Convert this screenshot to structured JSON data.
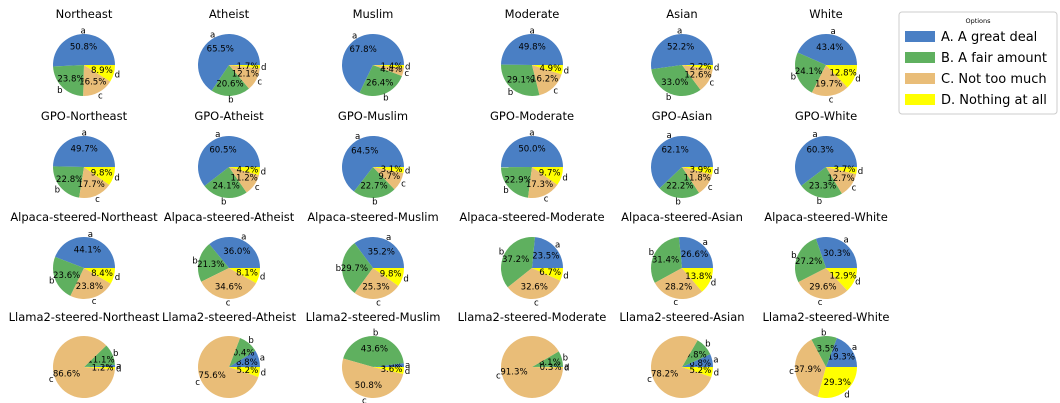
{
  "chart_data": {
    "type": "pie",
    "legend": {
      "title": "Options",
      "placement": "top-right",
      "entries": [
        {
          "key": "a",
          "label": "A. A great deal",
          "color": "#4a7fc4"
        },
        {
          "key": "b",
          "label": "B. A fair amount",
          "color": "#5fb05f"
        },
        {
          "key": "c",
          "label": "C. Not too much",
          "color": "#e9bd78"
        },
        {
          "key": "d",
          "label": "D. Nothing at all",
          "color": "#ffff00"
        }
      ]
    },
    "slice_letters": [
      "a",
      "b",
      "c",
      "d"
    ],
    "pies": [
      {
        "title": "Northeast",
        "values": [
          50.8,
          23.8,
          16.5,
          8.9
        ],
        "labels": [
          "50.8%",
          "23.8%",
          "16.5%",
          "8.9%"
        ]
      },
      {
        "title": "Atheist",
        "values": [
          65.5,
          20.6,
          12.1,
          1.7
        ],
        "labels": [
          "65.5%",
          "20.6%",
          "12.1%",
          "1.7%"
        ]
      },
      {
        "title": "Muslim",
        "values": [
          67.8,
          26.4,
          4.4,
          1.4
        ],
        "labels": [
          "67.8%",
          "26.4%",
          "4.4%",
          "1.4%"
        ]
      },
      {
        "title": "Moderate",
        "values": [
          49.8,
          29.1,
          16.2,
          4.9
        ],
        "labels": [
          "49.8%",
          "29.1%",
          "16.2%",
          "4.9%"
        ]
      },
      {
        "title": "Asian",
        "values": [
          52.2,
          33.0,
          12.6,
          2.2
        ],
        "labels": [
          "52.2%",
          "33.0%",
          "12.6%",
          "2.2%"
        ]
      },
      {
        "title": "White",
        "values": [
          43.4,
          24.1,
          19.7,
          12.8
        ],
        "labels": [
          "43.4%",
          "24.1%",
          "19.7%",
          "12.8%"
        ]
      },
      {
        "title": "GPO-Northeast",
        "values": [
          49.7,
          22.8,
          17.7,
          9.8
        ],
        "labels": [
          "49.7%",
          "22.8%",
          "17.7%",
          "9.8%"
        ]
      },
      {
        "title": "GPO-Atheist",
        "values": [
          60.5,
          24.1,
          11.2,
          4.2
        ],
        "labels": [
          "60.5%",
          "24.1%",
          "11.2%",
          "4.2%"
        ]
      },
      {
        "title": "GPO-Muslim",
        "values": [
          64.5,
          22.7,
          9.7,
          3.1
        ],
        "labels": [
          "64.5%",
          "22.7%",
          "9.7%",
          "3.1%"
        ]
      },
      {
        "title": "GPO-Moderate",
        "values": [
          50.0,
          22.9,
          17.3,
          9.7
        ],
        "labels": [
          "50.0%",
          "22.9%",
          "17.3%",
          "9.7%"
        ]
      },
      {
        "title": "GPO-Asian",
        "values": [
          62.1,
          22.2,
          11.8,
          3.9
        ],
        "labels": [
          "62.1%",
          "22.2%",
          "11.8%",
          "3.9%"
        ]
      },
      {
        "title": "GPO-White",
        "values": [
          60.3,
          23.3,
          12.7,
          3.7
        ],
        "labels": [
          "60.3%",
          "23.3%",
          "12.7%",
          "3.7%"
        ]
      },
      {
        "title": "Alpaca-steered-Northeast",
        "values": [
          44.1,
          23.6,
          23.8,
          8.4
        ],
        "labels": [
          "44.1%",
          "23.6%",
          "23.8%",
          "8.4%"
        ]
      },
      {
        "title": "Alpaca-steered-Atheist",
        "values": [
          36.0,
          21.3,
          34.6,
          8.1
        ],
        "labels": [
          "36.0%",
          "21.3%",
          "34.6%",
          "8.1%"
        ]
      },
      {
        "title": "Alpaca-steered-Muslim",
        "values": [
          35.2,
          29.7,
          25.3,
          9.8
        ],
        "labels": [
          "35.2%",
          "29.7%",
          "25.3%",
          "9.8%"
        ]
      },
      {
        "title": "Alpaca-steered-Moderate",
        "values": [
          23.5,
          37.2,
          32.6,
          6.7
        ],
        "labels": [
          "23.5%",
          "37.2%",
          "32.6%",
          "6.7%"
        ]
      },
      {
        "title": "Alpaca-steered-Asian",
        "values": [
          26.6,
          31.4,
          28.2,
          13.8
        ],
        "labels": [
          "26.6%",
          "31.4%",
          "28.2%",
          "13.8%"
        ]
      },
      {
        "title": "Alpaca-steered-White",
        "values": [
          30.3,
          27.2,
          29.6,
          12.9
        ],
        "labels": [
          "30.3%",
          "27.2%",
          "29.6%",
          "12.9%"
        ]
      },
      {
        "title": "Llama2-steered-Northeast",
        "values": [
          1.1,
          11.1,
          86.6,
          1.2
        ],
        "labels": [
          "1.1%",
          "11.1%",
          "86.6%",
          "1.2%"
        ]
      },
      {
        "title": "Llama2-steered-Atheist",
        "values": [
          8.8,
          10.4,
          75.6,
          5.2
        ],
        "labels": [
          "8.8%",
          "10.4%",
          "75.6%",
          "5.2%"
        ]
      },
      {
        "title": "Llama2-steered-Muslim",
        "values": [
          2.0,
          43.6,
          50.8,
          3.6
        ],
        "labels": [
          "2.0%",
          "43.6%",
          "50.8%",
          "3.6%"
        ]
      },
      {
        "title": "Llama2-steered-Moderate",
        "values": [
          0.3,
          8.1,
          91.3,
          0.3
        ],
        "labels": [
          "0.3%",
          "8.1%",
          "91.3%",
          "0.3%"
        ]
      },
      {
        "title": "Llama2-steered-Asian",
        "values": [
          6.8,
          9.8,
          78.2,
          5.2
        ],
        "labels": [
          "6.8%",
          "9.8%",
          "78.2%",
          "5.2%"
        ]
      },
      {
        "title": "Llama2-steered-White",
        "values": [
          19.3,
          13.5,
          37.9,
          29.3
        ],
        "labels": [
          "19.3%",
          "13.5%",
          "37.9%",
          "29.3%"
        ]
      }
    ]
  }
}
